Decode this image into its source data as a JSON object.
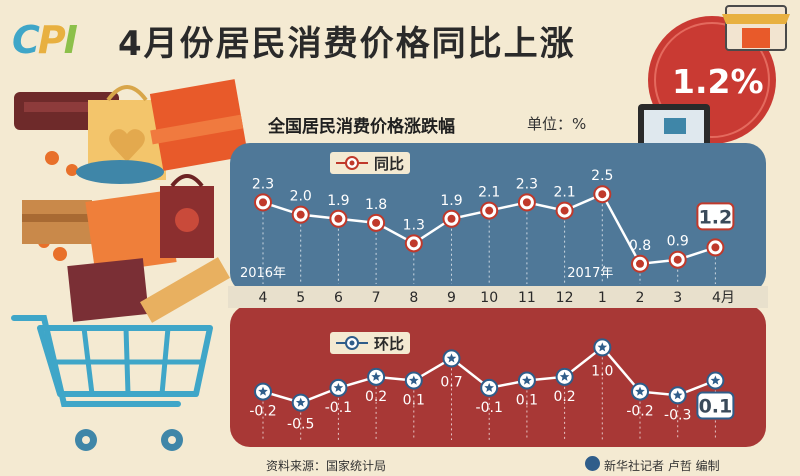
{
  "header": {
    "logo": "CPI",
    "title": "4月份居民消费价格同比上涨",
    "headline_value": "1.2%"
  },
  "chart": {
    "subtitle": "全国居民消费价格涨跌幅",
    "unit": "单位：%"
  },
  "footer": {
    "source": "资料来源：国家统计局",
    "credit": "新华社记者 卢哲 编制"
  },
  "colors": {
    "background": "#f4ead2",
    "yoy_panel": "#4f7898",
    "mom_panel": "#a83836",
    "axis_band": "#e8e0cc",
    "headline_circle": "#c93a33",
    "marker_fill": "#ffffff"
  },
  "chart_data": [
    {
      "type": "line",
      "legend": "同比",
      "x": [
        "4",
        "5",
        "6",
        "7",
        "8",
        "9",
        "10",
        "11",
        "12",
        "1",
        "2",
        "3",
        "4月"
      ],
      "values": [
        2.3,
        2.0,
        1.9,
        1.8,
        1.3,
        1.9,
        2.1,
        2.3,
        2.1,
        2.5,
        0.8,
        0.9,
        1.2
      ],
      "year_labels": [
        {
          "index": 0,
          "text": "2016年"
        },
        {
          "index": 9,
          "text": "2017年"
        }
      ],
      "highlight_index": 12,
      "ylim": [
        0.6,
        2.7
      ]
    },
    {
      "type": "line",
      "legend": "环比",
      "x": [
        "4",
        "5",
        "6",
        "7",
        "8",
        "9",
        "10",
        "11",
        "12",
        "1",
        "2",
        "3",
        "4月"
      ],
      "values": [
        -0.2,
        -0.5,
        -0.1,
        0.2,
        0.1,
        0.7,
        -0.1,
        0.1,
        0.2,
        1.0,
        -0.2,
        -0.3,
        0.1
      ],
      "highlight_index": 12,
      "ylim": [
        -0.7,
        1.2
      ]
    }
  ]
}
